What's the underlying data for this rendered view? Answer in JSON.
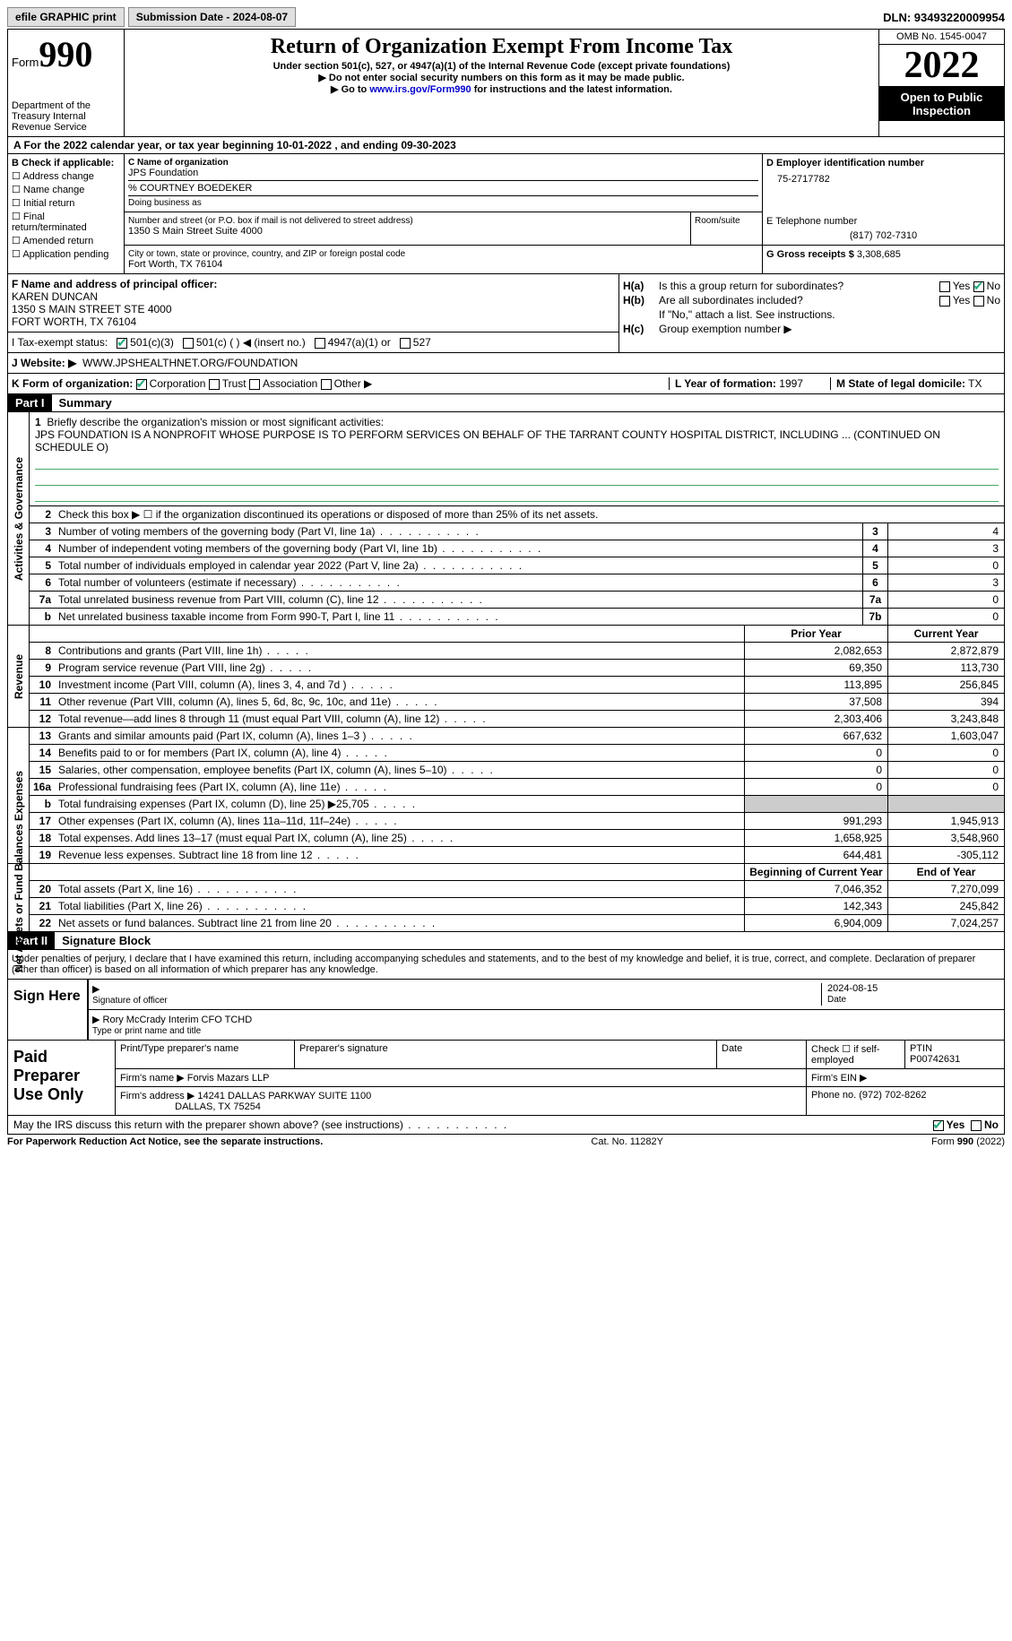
{
  "topbar": {
    "efile": "efile GRAPHIC print",
    "submission": "Submission Date - 2024-08-07",
    "dln": "DLN: 93493220009954"
  },
  "header": {
    "form_prefix": "Form",
    "form_no": "990",
    "dept": "Department of the Treasury\nInternal Revenue Service",
    "title": "Return of Organization Exempt From Income Tax",
    "sub1": "Under section 501(c), 527, or 4947(a)(1) of the Internal Revenue Code (except private foundations)",
    "sub2": "Do not enter social security numbers on this form as it may be made public.",
    "sub3_pre": "Go to ",
    "sub3_link": "www.irs.gov/Form990",
    "sub3_post": " for instructions and the latest information.",
    "omb": "OMB No. 1545-0047",
    "year": "2022",
    "open": "Open to Public Inspection"
  },
  "row_a": "A For the 2022 calendar year, or tax year beginning 10-01-2022   , and ending 09-30-2023",
  "b": {
    "hdr": "B Check if applicable:",
    "items": [
      "Address change",
      "Name change",
      "Initial return",
      "Final return/terminated",
      "Amended return",
      "Application pending"
    ]
  },
  "c": {
    "name_lbl": "C Name of organization",
    "name": "JPS Foundation",
    "care": "% COURTNEY BOEDEKER",
    "dba_lbl": "Doing business as",
    "addr_lbl": "Number and street (or P.O. box if mail is not delivered to street address)",
    "addr": "1350 S Main Street Suite 4000",
    "room_lbl": "Room/suite",
    "city_lbl": "City or town, state or province, country, and ZIP or foreign postal code",
    "city": "Fort Worth, TX  76104"
  },
  "d": {
    "lbl": "D Employer identification number",
    "val": "75-2717782"
  },
  "e": {
    "lbl": "E Telephone number",
    "val": "(817) 702-7310"
  },
  "g": {
    "lbl": "G Gross receipts $",
    "val": "3,308,685"
  },
  "f": {
    "lbl": "F Name and address of principal officer:",
    "name": "KAREN DUNCAN",
    "addr1": "1350 S MAIN STREET STE 4000",
    "addr2": "FORT WORTH, TX  76104"
  },
  "h": {
    "a_lbl": "H(a)",
    "a_q": "Is this a group return for subordinates?",
    "b_lbl": "H(b)",
    "b_q": "Are all subordinates included?",
    "b_note": "If \"No,\" attach a list. See instructions.",
    "c_lbl": "H(c)",
    "c_q": "Group exemption number ▶"
  },
  "i": {
    "lbl": "I   Tax-exempt status:",
    "o1": "501(c)(3)",
    "o2": "501(c) (  ) ◀ (insert no.)",
    "o3": "4947(a)(1) or",
    "o4": "527"
  },
  "j": {
    "lbl": "J   Website: ▶",
    "val": "WWW.JPSHEALTHNET.ORG/FOUNDATION"
  },
  "k": {
    "lbl": "K Form of organization:",
    "o1": "Corporation",
    "o2": "Trust",
    "o3": "Association",
    "o4": "Other ▶",
    "l_lbl": "L Year of formation:",
    "l_val": "1997",
    "m_lbl": "M State of legal domicile:",
    "m_val": "TX"
  },
  "part1": {
    "hdr": "Part I",
    "title": "Summary"
  },
  "p1_1": {
    "num": "1",
    "txt": "Briefly describe the organization's mission or most significant activities:",
    "mission": "JPS FOUNDATION IS A NONPROFIT WHOSE PURPOSE IS TO PERFORM SERVICES ON BEHALF OF THE TARRANT COUNTY HOSPITAL DISTRICT, INCLUDING ... (CONTINUED ON SCHEDULE O)"
  },
  "p1_2": {
    "num": "2",
    "txt": "Check this box ▶ ☐ if the organization discontinued its operations or disposed of more than 25% of its net assets."
  },
  "p1_rows_ag": [
    {
      "num": "3",
      "txt": "Number of voting members of the governing body (Part VI, line 1a)",
      "box": "3",
      "val": "4"
    },
    {
      "num": "4",
      "txt": "Number of independent voting members of the governing body (Part VI, line 1b)",
      "box": "4",
      "val": "3"
    },
    {
      "num": "5",
      "txt": "Total number of individuals employed in calendar year 2022 (Part V, line 2a)",
      "box": "5",
      "val": "0"
    },
    {
      "num": "6",
      "txt": "Total number of volunteers (estimate if necessary)",
      "box": "6",
      "val": "3"
    },
    {
      "num": "7a",
      "txt": "Total unrelated business revenue from Part VIII, column (C), line 12",
      "box": "7a",
      "val": "0"
    },
    {
      "num": "b",
      "txt": "Net unrelated business taxable income from Form 990-T, Part I, line 11",
      "box": "7b",
      "val": "0"
    }
  ],
  "hdr_prior": "Prior Year",
  "hdr_current": "Current Year",
  "rev_rows": [
    {
      "num": "8",
      "txt": "Contributions and grants (Part VIII, line 1h)",
      "c1": "2,082,653",
      "c2": "2,872,879"
    },
    {
      "num": "9",
      "txt": "Program service revenue (Part VIII, line 2g)",
      "c1": "69,350",
      "c2": "113,730"
    },
    {
      "num": "10",
      "txt": "Investment income (Part VIII, column (A), lines 3, 4, and 7d )",
      "c1": "113,895",
      "c2": "256,845"
    },
    {
      "num": "11",
      "txt": "Other revenue (Part VIII, column (A), lines 5, 6d, 8c, 9c, 10c, and 11e)",
      "c1": "37,508",
      "c2": "394"
    },
    {
      "num": "12",
      "txt": "Total revenue—add lines 8 through 11 (must equal Part VIII, column (A), line 12)",
      "c1": "2,303,406",
      "c2": "3,243,848"
    }
  ],
  "exp_rows": [
    {
      "num": "13",
      "txt": "Grants and similar amounts paid (Part IX, column (A), lines 1–3 )",
      "c1": "667,632",
      "c2": "1,603,047"
    },
    {
      "num": "14",
      "txt": "Benefits paid to or for members (Part IX, column (A), line 4)",
      "c1": "0",
      "c2": "0"
    },
    {
      "num": "15",
      "txt": "Salaries, other compensation, employee benefits (Part IX, column (A), lines 5–10)",
      "c1": "0",
      "c2": "0"
    },
    {
      "num": "16a",
      "txt": "Professional fundraising fees (Part IX, column (A), line 11e)",
      "c1": "0",
      "c2": "0"
    },
    {
      "num": "b",
      "txt": "Total fundraising expenses (Part IX, column (D), line 25) ▶25,705",
      "c1": "",
      "c2": "",
      "gray": true
    },
    {
      "num": "17",
      "txt": "Other expenses (Part IX, column (A), lines 11a–11d, 11f–24e)",
      "c1": "991,293",
      "c2": "1,945,913"
    },
    {
      "num": "18",
      "txt": "Total expenses. Add lines 13–17 (must equal Part IX, column (A), line 25)",
      "c1": "1,658,925",
      "c2": "3,548,960"
    },
    {
      "num": "19",
      "txt": "Revenue less expenses. Subtract line 18 from line 12",
      "c1": "644,481",
      "c2": "-305,112"
    }
  ],
  "hdr_begin": "Beginning of Current Year",
  "hdr_end": "End of Year",
  "na_rows": [
    {
      "num": "20",
      "txt": "Total assets (Part X, line 16)",
      "c1": "7,046,352",
      "c2": "7,270,099"
    },
    {
      "num": "21",
      "txt": "Total liabilities (Part X, line 26)",
      "c1": "142,343",
      "c2": "245,842"
    },
    {
      "num": "22",
      "txt": "Net assets or fund balances. Subtract line 21 from line 20",
      "c1": "6,904,009",
      "c2": "7,024,257"
    }
  ],
  "vlabels": {
    "ag": "Activities & Governance",
    "rev": "Revenue",
    "exp": "Expenses",
    "na": "Net Assets or Fund Balances"
  },
  "part2": {
    "hdr": "Part II",
    "title": "Signature Block"
  },
  "sig_intro": "Under penalties of perjury, I declare that I have examined this return, including accompanying schedules and statements, and to the best of my knowledge and belief, it is true, correct, and complete. Declaration of preparer (other than officer) is based on all information of which preparer has any knowledge.",
  "sign": {
    "left": "Sign Here",
    "sig_lbl": "Signature of officer",
    "date": "2024-08-15",
    "date_lbl": "Date",
    "name": "Rory McCrady Interim CFO TCHD",
    "name_lbl": "Type or print name and title"
  },
  "prep": {
    "left": "Paid Preparer Use Only",
    "r1_c1": "Print/Type preparer's name",
    "r1_c2": "Preparer's signature",
    "r1_c3": "Date",
    "r1_c4_lbl": "Check ☐ if self-employed",
    "r1_c5_lbl": "PTIN",
    "r1_c5_val": "P00742631",
    "r2_lbl": "Firm's name   ▶",
    "r2_val": "Forvis Mazars LLP",
    "r2_ein": "Firm's EIN ▶",
    "r3_lbl": "Firm's address ▶",
    "r3_val": "14241 DALLAS PARKWAY SUITE 1100",
    "r3_val2": "DALLAS, TX  75254",
    "r3_ph_lbl": "Phone no.",
    "r3_ph_val": "(972) 702-8262"
  },
  "may_irs": "May the IRS discuss this return with the preparer shown above? (see instructions)",
  "yes": "Yes",
  "no": "No",
  "footer": {
    "l": "For Paperwork Reduction Act Notice, see the separate instructions.",
    "m": "Cat. No. 11282Y",
    "r": "Form 990 (2022)"
  }
}
